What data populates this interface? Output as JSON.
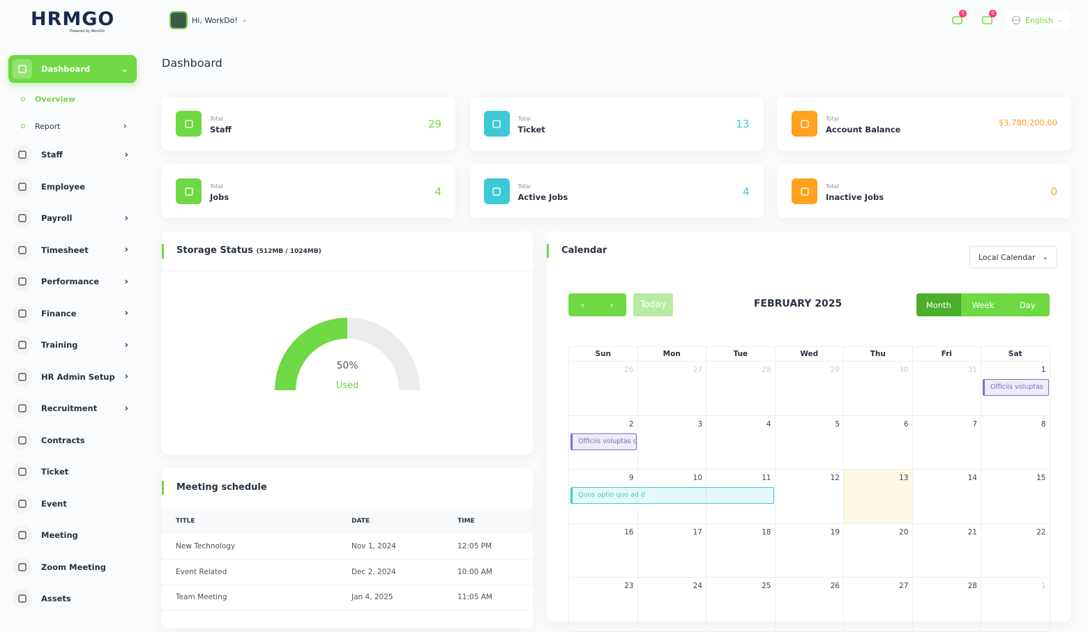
{
  "header": {
    "logo": "HRMGO",
    "logo_tagline": "Powered by WorkDo",
    "greeting": "Hi, WorkDo!",
    "message_badge": "0",
    "notification_badge": "0",
    "language": "English"
  },
  "sidebar": {
    "items": [
      {
        "label": "Dashboard",
        "has_children": true,
        "active": true
      },
      {
        "label": "Staff",
        "has_children": true
      },
      {
        "label": "Employee"
      },
      {
        "label": "Payroll",
        "has_children": true
      },
      {
        "label": "Timesheet",
        "has_children": true
      },
      {
        "label": "Performance",
        "has_children": true
      },
      {
        "label": "Finance",
        "has_children": true
      },
      {
        "label": "Training",
        "has_children": true
      },
      {
        "label": "HR Admin Setup",
        "has_children": true
      },
      {
        "label": "Recruitment",
        "has_children": true
      },
      {
        "label": "Contracts"
      },
      {
        "label": "Ticket"
      },
      {
        "label": "Event"
      },
      {
        "label": "Meeting"
      },
      {
        "label": "Zoom Meeting"
      },
      {
        "label": "Assets"
      }
    ],
    "dashboard_children": [
      {
        "label": "Overview",
        "active": true
      },
      {
        "label": "Report",
        "has_children": true
      }
    ]
  },
  "page_title": "Dashboard",
  "stats": [
    {
      "caption": "Total",
      "label": "Staff",
      "value": 29,
      "color": "#6fd943"
    },
    {
      "caption": "Total",
      "label": "Ticket",
      "value": 13,
      "color": "#3ec9d6"
    },
    {
      "caption": "Total",
      "label": "Account Balance",
      "value": "$3,780,200.00",
      "color": "#ffa21d"
    },
    {
      "caption": "Total",
      "label": "Jobs",
      "value": 4,
      "color": "#6fd943"
    },
    {
      "caption": "Total",
      "label": "Active Jobs",
      "value": 4,
      "color": "#3ec9d6"
    },
    {
      "caption": "Total",
      "label": "Inactive Jobs",
      "value": 0,
      "color": "#ffa21d"
    }
  ],
  "storage": {
    "title": "Storage Status",
    "detail": "(512MB / 1024MB)",
    "percent": 50,
    "percent_label": "50%",
    "status": "Used"
  },
  "meetings": {
    "title": "Meeting schedule",
    "columns": [
      "TITLE",
      "DATE",
      "TIME"
    ],
    "rows": [
      [
        "New Technology",
        "Nov 1, 2024",
        "12:05 PM"
      ],
      [
        "Event Related",
        "Dec 2, 2024",
        "10:00 AM"
      ],
      [
        "Team Meeting",
        "Jan 4, 2025",
        "11:05 AM"
      ]
    ]
  },
  "calendar": {
    "title": "Calendar",
    "source": "Local Calendar",
    "today_button": "Today",
    "month": "FEBRUARY 2025",
    "views": [
      "Month",
      "Week",
      "Day"
    ],
    "weekdays": [
      "Sun",
      "Mon",
      "Tue",
      "Wed",
      "Thu",
      "Fri",
      "Sat"
    ],
    "weeks": [
      [
        26,
        27,
        28,
        29,
        30,
        31,
        1
      ],
      [
        2,
        3,
        4,
        5,
        6,
        7,
        8
      ],
      [
        9,
        10,
        11,
        12,
        13,
        14,
        15
      ],
      [
        16,
        17,
        18,
        19,
        20,
        21,
        22
      ],
      [
        23,
        24,
        25,
        26,
        27,
        28,
        1
      ]
    ],
    "today": 13,
    "events": [
      {
        "title": "Officiis voluptas",
        "start": 1,
        "end": 1,
        "color": "#7c6fc4"
      },
      {
        "title": "Officiis voluptas c",
        "start": 2,
        "end": 2,
        "color": "#7c6fc4"
      },
      {
        "title": "Quos optio quo ad d",
        "start": 9,
        "end": 11,
        "color": "#3ec9d6"
      }
    ]
  }
}
